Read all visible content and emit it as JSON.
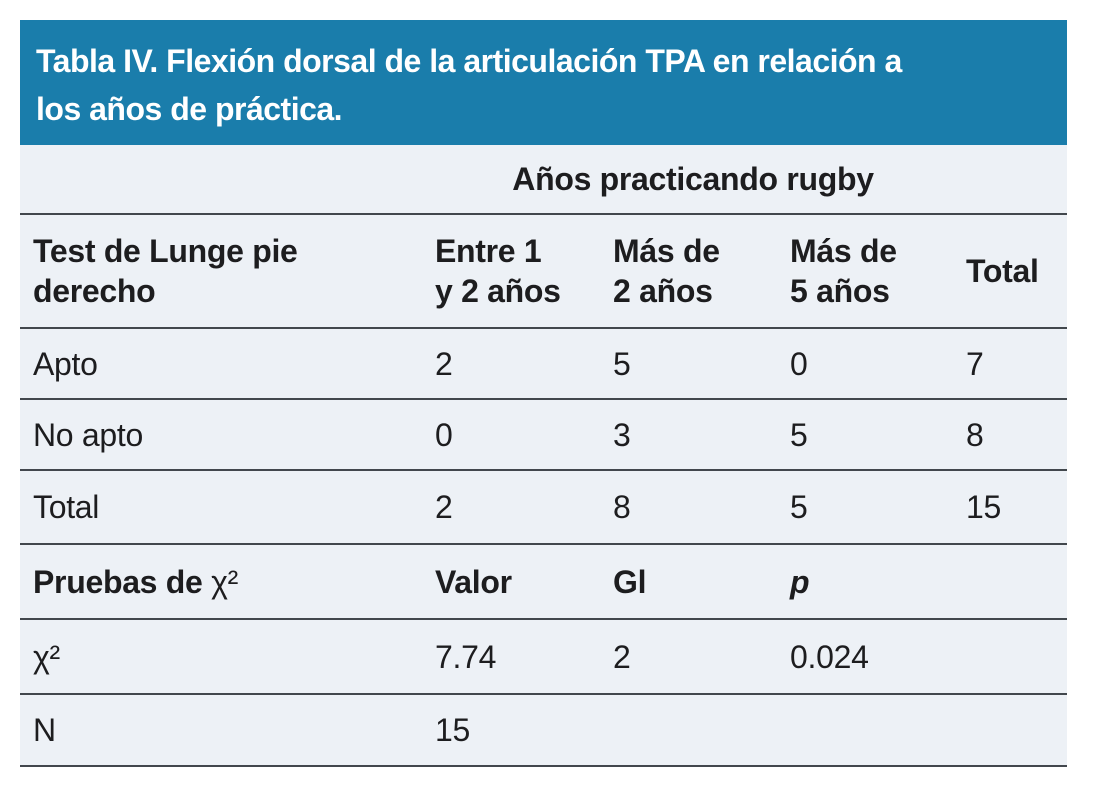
{
  "table": {
    "title_line1": "Tabla IV. Flexión dorsal de la articulación TPA en relación a",
    "title_line2": "los años de práctica.",
    "group_header": "Años practicando rugby",
    "columns": [
      [
        "Test de Lunge pie",
        "derecho"
      ],
      [
        "Entre 1",
        "y 2 años"
      ],
      [
        "Más de",
        "2 años"
      ],
      [
        "Más de",
        "5 años"
      ],
      [
        "Total"
      ]
    ],
    "rows": [
      {
        "label": "Apto",
        "values": [
          "2",
          "5",
          "0",
          "7"
        ]
      },
      {
        "label": "No apto",
        "values": [
          "0",
          "3",
          "5",
          "8"
        ]
      },
      {
        "label": "Total",
        "values": [
          "2",
          "8",
          "5",
          "15"
        ]
      }
    ],
    "stats": {
      "header": {
        "prefix": "Pruebas de ",
        "chi": "χ²",
        "cols": [
          "Valor",
          "Gl",
          "p"
        ]
      },
      "rows": [
        {
          "label": "χ²",
          "values": [
            "7.74",
            "2",
            "0.024",
            ""
          ]
        },
        {
          "label": "N",
          "values": [
            "15",
            "",
            "",
            ""
          ]
        }
      ]
    },
    "colors": {
      "header_bg": "#1a7dab",
      "body_bg": "#edf1f6",
      "rule": "#42474d",
      "text": "#1d1d1f",
      "title_text": "#ffffff"
    }
  }
}
